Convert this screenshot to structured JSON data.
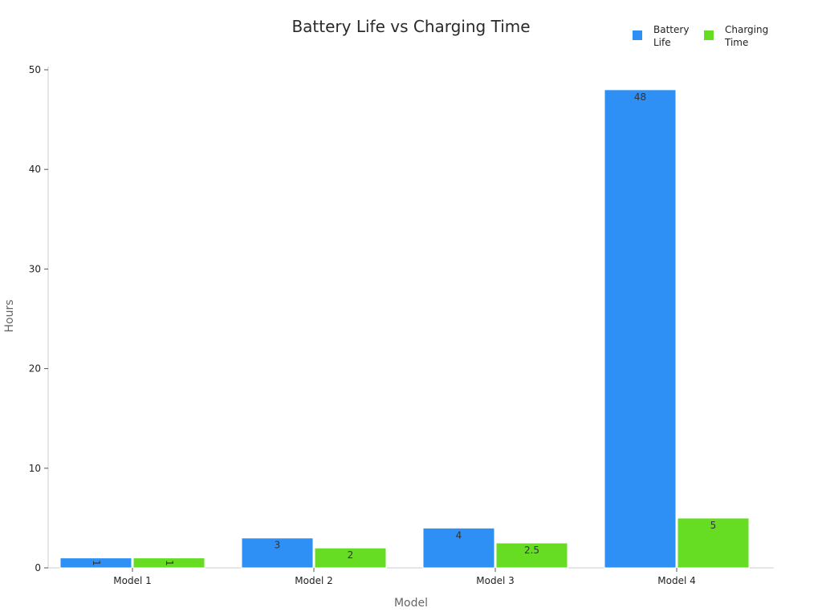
{
  "chart_data": {
    "type": "bar",
    "title": "Battery Life vs Charging Time",
    "xlabel": "Model",
    "ylabel": "Hours",
    "categories": [
      "Model 1",
      "Model 2",
      "Model 3",
      "Model 4"
    ],
    "series": [
      {
        "name": "Battery Life",
        "color": "#2e8ff4",
        "values": [
          1,
          3,
          4,
          48
        ],
        "labels": [
          "1",
          "3",
          "4",
          "48"
        ]
      },
      {
        "name": "Charging Time",
        "color": "#66dd22",
        "values": [
          1,
          2,
          2.5,
          5
        ],
        "labels": [
          "1",
          "2",
          "2.5",
          "5"
        ]
      }
    ],
    "ylim": [
      0,
      50
    ],
    "yticks": [
      0,
      10,
      20,
      30,
      40,
      50
    ],
    "ytick_labels": [
      "0",
      "10",
      "20",
      "30",
      "40",
      "50"
    ],
    "grid": false,
    "legend_position": "top-right",
    "legend_labels": [
      [
        "Battery",
        "Life"
      ],
      [
        "Charging",
        "Time"
      ]
    ]
  }
}
